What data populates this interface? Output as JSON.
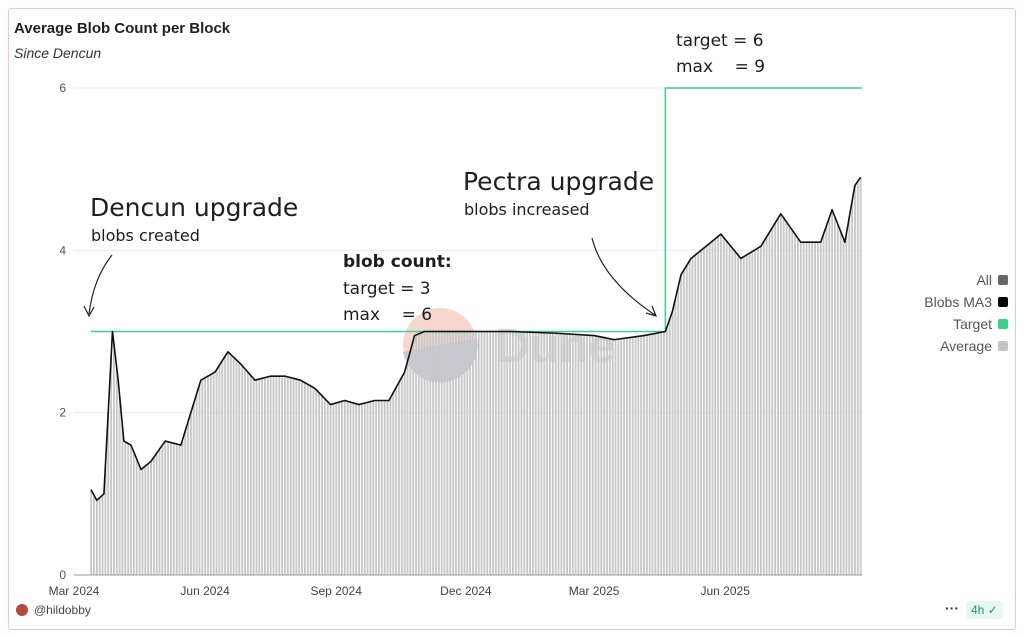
{
  "header": {
    "title": "Average Blob Count per Block",
    "subtitle": "Since Dencun"
  },
  "annotations": {
    "dencun_title": "Dencun upgrade",
    "dencun_sub": "blobs created",
    "blob_count_title": "blob count:",
    "blob_count_target": "target = 3",
    "blob_count_max": "max    = 6",
    "pectra_title": "Pectra upgrade",
    "pectra_sub": "blobs increased",
    "new_target": "target = 6",
    "new_max": "max    = 9"
  },
  "watermark": "Dune",
  "legend": [
    {
      "label": "All",
      "color": "#666666"
    },
    {
      "label": "Blobs MA3",
      "color": "#000000"
    },
    {
      "label": "Target",
      "color": "#3ccf91"
    },
    {
      "label": "Average",
      "color": "#c4c4c4"
    }
  ],
  "footer": {
    "user": "@hildobby",
    "more": "···",
    "refresh": "4h",
    "refresh_icon": "check-circle-icon"
  },
  "chart_data": {
    "type": "bar",
    "title": "Average Blob Count per Block",
    "subtitle": "Since Dencun",
    "xlabel": "",
    "ylabel": "",
    "ylim": [
      0,
      6
    ],
    "yticks": [
      "0",
      "2",
      "4",
      "6"
    ],
    "xticks": [
      {
        "date": "2024-03-01",
        "label": "Mar 2024"
      },
      {
        "date": "2024-06-01",
        "label": "Jun 2024"
      },
      {
        "date": "2024-09-01",
        "label": "Sep 2024"
      },
      {
        "date": "2024-12-01",
        "label": "Dec 2024"
      },
      {
        "date": "2025-03-01",
        "label": "Mar 2025"
      },
      {
        "date": "2025-06-01",
        "label": "Jun 2025"
      }
    ],
    "xlim": [
      "2024-03-01",
      "2025-09-05"
    ],
    "series": [
      {
        "name": "Blobs MA3",
        "type": "line",
        "x": [
          "2024-03-13",
          "2024-03-17",
          "2024-03-22",
          "2024-03-28",
          "2024-04-01",
          "2024-04-05",
          "2024-04-10",
          "2024-04-17",
          "2024-04-24",
          "2024-05-04",
          "2024-05-15",
          "2024-05-22",
          "2024-05-29",
          "2024-06-08",
          "2024-06-17",
          "2024-06-26",
          "2024-07-06",
          "2024-07-17",
          "2024-07-27",
          "2024-08-07",
          "2024-08-17",
          "2024-08-28",
          "2024-09-07",
          "2024-09-17",
          "2024-09-28",
          "2024-10-08",
          "2024-10-19",
          "2024-10-26",
          "2024-11-02",
          "2024-12-01",
          "2025-01-01",
          "2025-02-01",
          "2025-03-01",
          "2025-03-15",
          "2025-04-05",
          "2025-04-20",
          "2025-04-25",
          "2025-05-01",
          "2025-05-08",
          "2025-05-15",
          "2025-05-29",
          "2025-06-12",
          "2025-06-26",
          "2025-07-10",
          "2025-07-24",
          "2025-08-07",
          "2025-08-15",
          "2025-08-24",
          "2025-08-31",
          "2025-09-04"
        ],
        "values": [
          1.05,
          0.92,
          1.0,
          3.0,
          2.4,
          1.65,
          1.6,
          1.3,
          1.4,
          1.65,
          1.6,
          2.0,
          2.4,
          2.5,
          2.75,
          2.6,
          2.4,
          2.45,
          2.45,
          2.4,
          2.3,
          2.1,
          2.15,
          2.1,
          2.15,
          2.15,
          2.5,
          2.95,
          3.0,
          3.0,
          3.0,
          2.98,
          2.95,
          2.9,
          2.95,
          3.0,
          3.25,
          3.7,
          3.9,
          4.0,
          4.2,
          3.9,
          4.05,
          4.45,
          4.1,
          4.1,
          4.5,
          4.1,
          4.8,
          4.9
        ]
      },
      {
        "name": "Target",
        "type": "step",
        "x": [
          "2024-03-13",
          "2025-04-20",
          "2025-04-20",
          "2025-09-05"
        ],
        "values": [
          3,
          3,
          6,
          6
        ]
      }
    ]
  }
}
